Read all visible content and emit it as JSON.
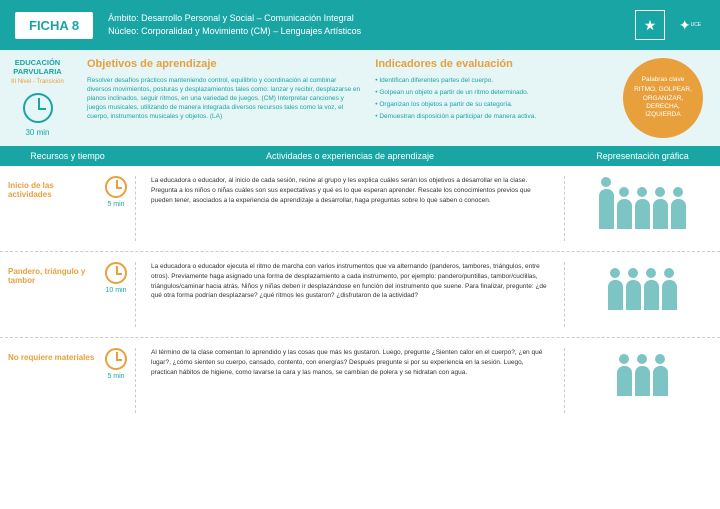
{
  "header": {
    "ficha": "FICHA 8",
    "ambito": "Ámbito: Desarrollo Personal y Social – Comunicación Integral",
    "nucleo": "Núcleo: Corporalidad y Movimiento (CM) – Lenguajes Artísticos",
    "uce": "UCE"
  },
  "sidebar": {
    "edu1": "EDUCACIÓN",
    "edu2": "PARVULARIA",
    "nivel": "III Nivel - Transición",
    "duration": "30 min"
  },
  "objetivos": {
    "title": "Objetivos de aprendizaje",
    "text": "Resolver desafíos prácticos manteniendo control, equilibrio y coordinación al combinar diversos movimientos, posturas y desplazamientos tales como: lanzar y recibir, desplazarse en planos inclinados, seguir ritmos, en una variedad de juegos. (CM)\nInterpretar canciones y juegos musicales, utilizando de manera integrada diversos recursos tales como la voz, el cuerpo, instrumentos musicales y objetos. (LA)"
  },
  "indicadores": {
    "title": "Indicadores de evaluación",
    "items": [
      "Identifican diferentes partes del cuerpo.",
      "Golpean un objeto a partir de un ritmo determinado.",
      "Organizan los objetos a partir de su categoría.",
      "Demuestran disposición a participar de manera activa."
    ]
  },
  "keywords": {
    "title": "Palabras clave",
    "list": "RITMO, GOLPEAR, ORGANIZAR, DERECHA, IZQUIERDA"
  },
  "columns": {
    "c1": "Recursos y tiempo",
    "c2": "Actividades o experiencias de aprendizaje",
    "c3": "Representación gráfica"
  },
  "rows": [
    {
      "title": "Inicio de las actividades",
      "time": "5 min",
      "text": "La educadora o educador, al inicio de cada sesión, reúne al grupo y les explica cuáles serán los objetivos a desarrollar en la clase. Pregunta a los niños o niñas cuáles son sus expectativas y qué es lo que esperan aprender. Rescate los conocimientos previos que pueden tener, asociados a la experiencia de aprendizaje a desarrollar, haga preguntas sobre lo que saben o conocen."
    },
    {
      "title": "Pandero, triángulo y tambor",
      "time": "10 min",
      "text": "La educadora o educador ejecuta el ritmo de marcha con varios instrumentos que va alternando (panderos, tambores, triángulos, entre otros). Previamente haga asignado una forma de desplazamiento a cada instrumento, por ejemplo: pandero/puntillas, tambor/cuclillas, triángulos/caminar hacia atrás. Niños y niñas deben ir desplazándose en función del instrumento que suene. Para finalizar, pregunte: ¿de qué otra forma podrían desplazarse? ¿qué ritmos les gustaron? ¿disfrutaron de la actividad?"
    },
    {
      "title": "No requiere materiales",
      "time": "5 min",
      "text": "Al término de la clase comentan lo aprendido y las cosas que más les gustaron. Luego, pregunte ¿Sienten calor en el cuerpo?, ¿en qué lugar?, ¿cómo sienten su cuerpo, cansado, contento, con energías? Después pregunte si por su experiencia en la sesión. Luego, practican hábitos de higiene, como lavarse la cara y las manos, se cambian de polera y se hidratan con agua."
    }
  ]
}
